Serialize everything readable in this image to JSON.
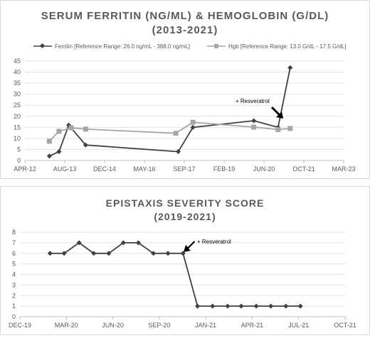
{
  "chart_data": [
    {
      "type": "line",
      "title_line1": "SERUM FERRITIN (NG/ML) & HEMOGLOBIN (G/DL)",
      "title_line2": "(2013-2021)",
      "x_tick_labels": [
        "APR-12",
        "AUG-13",
        "DEC-14",
        "MAY-16",
        "SEP-17",
        "FEB-19",
        "JUN-20",
        "OCT-21",
        "MAR-23"
      ],
      "x_range": [
        "2012-04",
        "2023-03"
      ],
      "ylim": [
        0,
        45
      ],
      "y_ticks": [
        0,
        5,
        10,
        15,
        20,
        25,
        30,
        35,
        40,
        45
      ],
      "grid": "horizontal",
      "legend_position": "top",
      "series": [
        {
          "name": "Ferritin [Reference Range: 26.0 ng/mL - 388.0 ng/mL]",
          "color": "#404040",
          "marker": "diamond",
          "points": [
            {
              "x": "2013-02",
              "y": 2
            },
            {
              "x": "2013-06",
              "y": 4
            },
            {
              "x": "2013-10",
              "y": 16
            },
            {
              "x": "2014-05",
              "y": 7
            },
            {
              "x": "2017-07",
              "y": 4
            },
            {
              "x": "2018-01",
              "y": 15
            },
            {
              "x": "2020-02",
              "y": 18
            },
            {
              "x": "2020-12",
              "y": 15
            },
            {
              "x": "2021-05",
              "y": 42
            }
          ]
        },
        {
          "name": "Hgb [Reference Range: 13.0 G/dL - 17.5 G/dL]",
          "color": "#a6a6a6",
          "marker": "square",
          "points": [
            {
              "x": "2013-02",
              "y": 8.7
            },
            {
              "x": "2013-06",
              "y": 13.2
            },
            {
              "x": "2013-11",
              "y": 14.8
            },
            {
              "x": "2014-05",
              "y": 14.2
            },
            {
              "x": "2017-06",
              "y": 12.3
            },
            {
              "x": "2018-01",
              "y": 17.3
            },
            {
              "x": "2020-02",
              "y": 15.1
            },
            {
              "x": "2020-12",
              "y": 14
            },
            {
              "x": "2021-05",
              "y": 14.5
            }
          ]
        }
      ],
      "annotation": {
        "text": "+ Resveratrol",
        "arrow": "down-right toward 2020-12 data point"
      }
    },
    {
      "type": "line",
      "title_line1": "EPISTAXIS SEVERITY SCORE",
      "title_line2": "(2019-2021)",
      "x_tick_labels": [
        "DEC-19",
        "MAR-20",
        "JUN-20",
        "SEP-20",
        "JAN-21",
        "APR-21",
        "JUL-21",
        "OCT-21"
      ],
      "x_range": [
        "2019-12",
        "2021-10"
      ],
      "ylim": [
        0,
        8
      ],
      "y_ticks": [
        0,
        1,
        2,
        3,
        4,
        5,
        6,
        7,
        8
      ],
      "grid": "horizontal",
      "series": [
        {
          "name": "",
          "color": "#404040",
          "marker": "diamond",
          "points": [
            {
              "x": "2020-02-01",
              "y": 6
            },
            {
              "x": "2020-03-01",
              "y": 6
            },
            {
              "x": "2020-04-01",
              "y": 7
            },
            {
              "x": "2020-05-01",
              "y": 6
            },
            {
              "x": "2020-06-01",
              "y": 6
            },
            {
              "x": "2020-07-01",
              "y": 7
            },
            {
              "x": "2020-08-01",
              "y": 7
            },
            {
              "x": "2020-09-01",
              "y": 6
            },
            {
              "x": "2020-10-01",
              "y": 6
            },
            {
              "x": "2020-11-01",
              "y": 6
            },
            {
              "x": "2020-12-01",
              "y": 1
            },
            {
              "x": "2021-01-01",
              "y": 1
            },
            {
              "x": "2021-02-01",
              "y": 1
            },
            {
              "x": "2021-03-01",
              "y": 1
            },
            {
              "x": "2021-04-01",
              "y": 1
            },
            {
              "x": "2021-05-01",
              "y": 1
            },
            {
              "x": "2021-06-01",
              "y": 1
            },
            {
              "x": "2021-07-01",
              "y": 1
            }
          ]
        }
      ],
      "annotation": {
        "text": "+ Resveratrol",
        "arrow": "down-left toward 2020-11 data point"
      }
    }
  ]
}
